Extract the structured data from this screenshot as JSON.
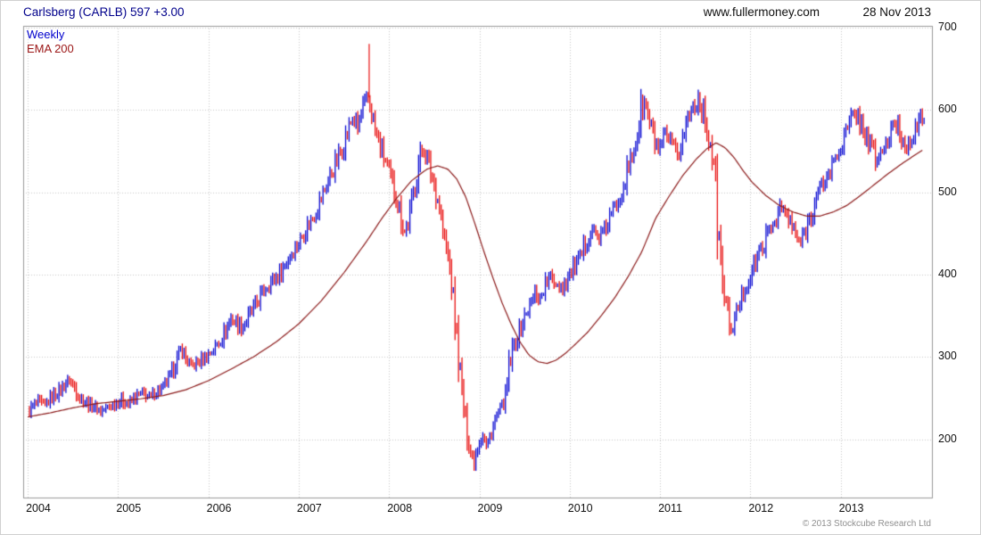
{
  "header": {
    "title": "Carlsberg (CARLB) 597 +3.00",
    "site": "www.fullermoney.com",
    "date": "28 Nov 2013"
  },
  "legend": {
    "series": "Weekly",
    "overlay": "EMA 200"
  },
  "footer": {
    "copyright": "© 2013 Stockcube Research Ltd"
  },
  "chart_data": {
    "type": "candlestick",
    "title": "Carlsberg (CARLB) 597 +3.00",
    "interval": "Weekly",
    "overlay": "EMA 200",
    "latest": {
      "price": 597,
      "change": "+3.00"
    },
    "x_ticks": [
      2004,
      2005,
      2006,
      2007,
      2008,
      2009,
      2010,
      2011,
      2012,
      2013
    ],
    "y_ticks": [
      200,
      300,
      400,
      500,
      600,
      700
    ],
    "xlim": [
      2003.95,
      2014.02
    ],
    "ylim": [
      128,
      702
    ],
    "grid": "dotted",
    "colors": {
      "up": "#0a0ad2",
      "down": "#e81010",
      "ema": "#8b1a1a",
      "grid": "#c6c6c6",
      "border": "#9a9a9a"
    },
    "wicks": [
      {
        "t": 2007.78,
        "from": 615,
        "to": 680
      }
    ],
    "price_path": [
      [
        2004.0,
        233
      ],
      [
        2004.06,
        240
      ],
      [
        2004.12,
        246
      ],
      [
        2004.19,
        241
      ],
      [
        2004.27,
        252
      ],
      [
        2004.35,
        258
      ],
      [
        2004.42,
        268
      ],
      [
        2004.46,
        272
      ],
      [
        2004.52,
        262
      ],
      [
        2004.58,
        250
      ],
      [
        2004.65,
        244
      ],
      [
        2004.73,
        240
      ],
      [
        2004.81,
        234
      ],
      [
        2004.88,
        238
      ],
      [
        2004.96,
        243
      ],
      [
        2005.04,
        247
      ],
      [
        2005.12,
        243
      ],
      [
        2005.19,
        251
      ],
      [
        2005.27,
        256
      ],
      [
        2005.35,
        251
      ],
      [
        2005.42,
        257
      ],
      [
        2005.5,
        263
      ],
      [
        2005.58,
        277
      ],
      [
        2005.65,
        296
      ],
      [
        2005.7,
        310
      ],
      [
        2005.75,
        298
      ],
      [
        2005.81,
        288
      ],
      [
        2005.88,
        293
      ],
      [
        2005.96,
        299
      ],
      [
        2006.04,
        307
      ],
      [
        2006.12,
        318
      ],
      [
        2006.19,
        331
      ],
      [
        2006.25,
        347
      ],
      [
        2006.31,
        341
      ],
      [
        2006.38,
        336
      ],
      [
        2006.46,
        352
      ],
      [
        2006.54,
        366
      ],
      [
        2006.62,
        382
      ],
      [
        2006.69,
        391
      ],
      [
        2006.77,
        398
      ],
      [
        2006.85,
        412
      ],
      [
        2006.92,
        426
      ],
      [
        2007.0,
        438
      ],
      [
        2007.08,
        456
      ],
      [
        2007.15,
        468
      ],
      [
        2007.23,
        487
      ],
      [
        2007.31,
        510
      ],
      [
        2007.38,
        528
      ],
      [
        2007.46,
        548
      ],
      [
        2007.54,
        572
      ],
      [
        2007.6,
        592
      ],
      [
        2007.65,
        576
      ],
      [
        2007.71,
        602
      ],
      [
        2007.77,
        612
      ],
      [
        2007.81,
        596
      ],
      [
        2007.85,
        572
      ],
      [
        2007.9,
        556
      ],
      [
        2007.96,
        538
      ],
      [
        2008.02,
        516
      ],
      [
        2008.08,
        494
      ],
      [
        2008.13,
        472
      ],
      [
        2008.17,
        452
      ],
      [
        2008.21,
        462
      ],
      [
        2008.27,
        498
      ],
      [
        2008.33,
        536
      ],
      [
        2008.38,
        556
      ],
      [
        2008.44,
        534
      ],
      [
        2008.5,
        508
      ],
      [
        2008.56,
        482
      ],
      [
        2008.6,
        448
      ],
      [
        2008.65,
        424
      ],
      [
        2008.69,
        392
      ],
      [
        2008.73,
        346
      ],
      [
        2008.77,
        300
      ],
      [
        2008.81,
        254
      ],
      [
        2008.85,
        216
      ],
      [
        2008.9,
        186
      ],
      [
        2008.94,
        172
      ],
      [
        2008.98,
        192
      ],
      [
        2009.04,
        206
      ],
      [
        2009.08,
        190
      ],
      [
        2009.13,
        208
      ],
      [
        2009.17,
        222
      ],
      [
        2009.21,
        232
      ],
      [
        2009.25,
        240
      ],
      [
        2009.29,
        252
      ],
      [
        2009.33,
        288
      ],
      [
        2009.38,
        312
      ],
      [
        2009.44,
        330
      ],
      [
        2009.5,
        348
      ],
      [
        2009.56,
        362
      ],
      [
        2009.62,
        378
      ],
      [
        2009.67,
        370
      ],
      [
        2009.73,
        388
      ],
      [
        2009.79,
        396
      ],
      [
        2009.85,
        390
      ],
      [
        2009.92,
        384
      ],
      [
        2009.98,
        396
      ],
      [
        2010.04,
        408
      ],
      [
        2010.12,
        420
      ],
      [
        2010.19,
        442
      ],
      [
        2010.25,
        456
      ],
      [
        2010.31,
        444
      ],
      [
        2010.38,
        452
      ],
      [
        2010.46,
        472
      ],
      [
        2010.54,
        492
      ],
      [
        2010.62,
        518
      ],
      [
        2010.69,
        542
      ],
      [
        2010.75,
        572
      ],
      [
        2010.79,
        598
      ],
      [
        2010.83,
        608
      ],
      [
        2010.88,
        586
      ],
      [
        2010.94,
        562
      ],
      [
        2011.0,
        548
      ],
      [
        2011.06,
        568
      ],
      [
        2011.12,
        558
      ],
      [
        2011.19,
        542
      ],
      [
        2011.25,
        566
      ],
      [
        2011.31,
        590
      ],
      [
        2011.37,
        606
      ],
      [
        2011.42,
        614
      ],
      [
        2011.46,
        602
      ],
      [
        2011.5,
        588
      ],
      [
        2011.54,
        566
      ],
      [
        2011.58,
        544
      ],
      [
        2011.62,
        496
      ],
      [
        2011.65,
        438
      ],
      [
        2011.69,
        396
      ],
      [
        2011.73,
        362
      ],
      [
        2011.77,
        344
      ],
      [
        2011.81,
        330
      ],
      [
        2011.85,
        356
      ],
      [
        2011.9,
        372
      ],
      [
        2011.96,
        388
      ],
      [
        2012.02,
        404
      ],
      [
        2012.08,
        422
      ],
      [
        2012.15,
        438
      ],
      [
        2012.21,
        452
      ],
      [
        2012.27,
        466
      ],
      [
        2012.33,
        482
      ],
      [
        2012.4,
        472
      ],
      [
        2012.46,
        458
      ],
      [
        2012.52,
        444
      ],
      [
        2012.56,
        438
      ],
      [
        2012.62,
        458
      ],
      [
        2012.69,
        478
      ],
      [
        2012.75,
        498
      ],
      [
        2012.81,
        512
      ],
      [
        2012.88,
        524
      ],
      [
        2012.94,
        542
      ],
      [
        2013.0,
        556
      ],
      [
        2013.06,
        572
      ],
      [
        2013.12,
        588
      ],
      [
        2013.17,
        596
      ],
      [
        2013.23,
        582
      ],
      [
        2013.29,
        566
      ],
      [
        2013.35,
        552
      ],
      [
        2013.4,
        538
      ],
      [
        2013.46,
        550
      ],
      [
        2013.52,
        562
      ],
      [
        2013.58,
        576
      ],
      [
        2013.63,
        584
      ],
      [
        2013.67,
        566
      ],
      [
        2013.71,
        554
      ],
      [
        2013.77,
        566
      ],
      [
        2013.83,
        576
      ],
      [
        2013.88,
        584
      ],
      [
        2013.92,
        597
      ]
    ],
    "ema_path": [
      [
        2004.0,
        227
      ],
      [
        2004.25,
        232
      ],
      [
        2004.5,
        238
      ],
      [
        2004.75,
        243
      ],
      [
        2005.0,
        246
      ],
      [
        2005.25,
        249
      ],
      [
        2005.5,
        253
      ],
      [
        2005.75,
        260
      ],
      [
        2006.0,
        271
      ],
      [
        2006.25,
        285
      ],
      [
        2006.5,
        300
      ],
      [
        2006.75,
        318
      ],
      [
        2007.0,
        340
      ],
      [
        2007.25,
        368
      ],
      [
        2007.5,
        402
      ],
      [
        2007.75,
        440
      ],
      [
        2007.92,
        468
      ],
      [
        2008.08,
        492
      ],
      [
        2008.25,
        514
      ],
      [
        2008.42,
        528
      ],
      [
        2008.54,
        532
      ],
      [
        2008.65,
        528
      ],
      [
        2008.75,
        516
      ],
      [
        2008.85,
        494
      ],
      [
        2008.95,
        462
      ],
      [
        2009.05,
        428
      ],
      [
        2009.15,
        396
      ],
      [
        2009.25,
        366
      ],
      [
        2009.35,
        340
      ],
      [
        2009.45,
        318
      ],
      [
        2009.55,
        302
      ],
      [
        2009.65,
        294
      ],
      [
        2009.75,
        292
      ],
      [
        2009.85,
        296
      ],
      [
        2009.95,
        304
      ],
      [
        2010.05,
        314
      ],
      [
        2010.2,
        330
      ],
      [
        2010.35,
        350
      ],
      [
        2010.5,
        372
      ],
      [
        2010.65,
        398
      ],
      [
        2010.8,
        428
      ],
      [
        2010.95,
        468
      ],
      [
        2011.1,
        495
      ],
      [
        2011.25,
        520
      ],
      [
        2011.4,
        540
      ],
      [
        2011.52,
        553
      ],
      [
        2011.62,
        560
      ],
      [
        2011.72,
        554
      ],
      [
        2011.82,
        542
      ],
      [
        2011.92,
        526
      ],
      [
        2012.02,
        512
      ],
      [
        2012.17,
        496
      ],
      [
        2012.32,
        484
      ],
      [
        2012.47,
        476
      ],
      [
        2012.62,
        471
      ],
      [
        2012.77,
        471
      ],
      [
        2012.92,
        476
      ],
      [
        2013.07,
        484
      ],
      [
        2013.22,
        496
      ],
      [
        2013.37,
        509
      ],
      [
        2013.52,
        522
      ],
      [
        2013.67,
        534
      ],
      [
        2013.82,
        545
      ],
      [
        2013.92,
        552
      ]
    ]
  }
}
